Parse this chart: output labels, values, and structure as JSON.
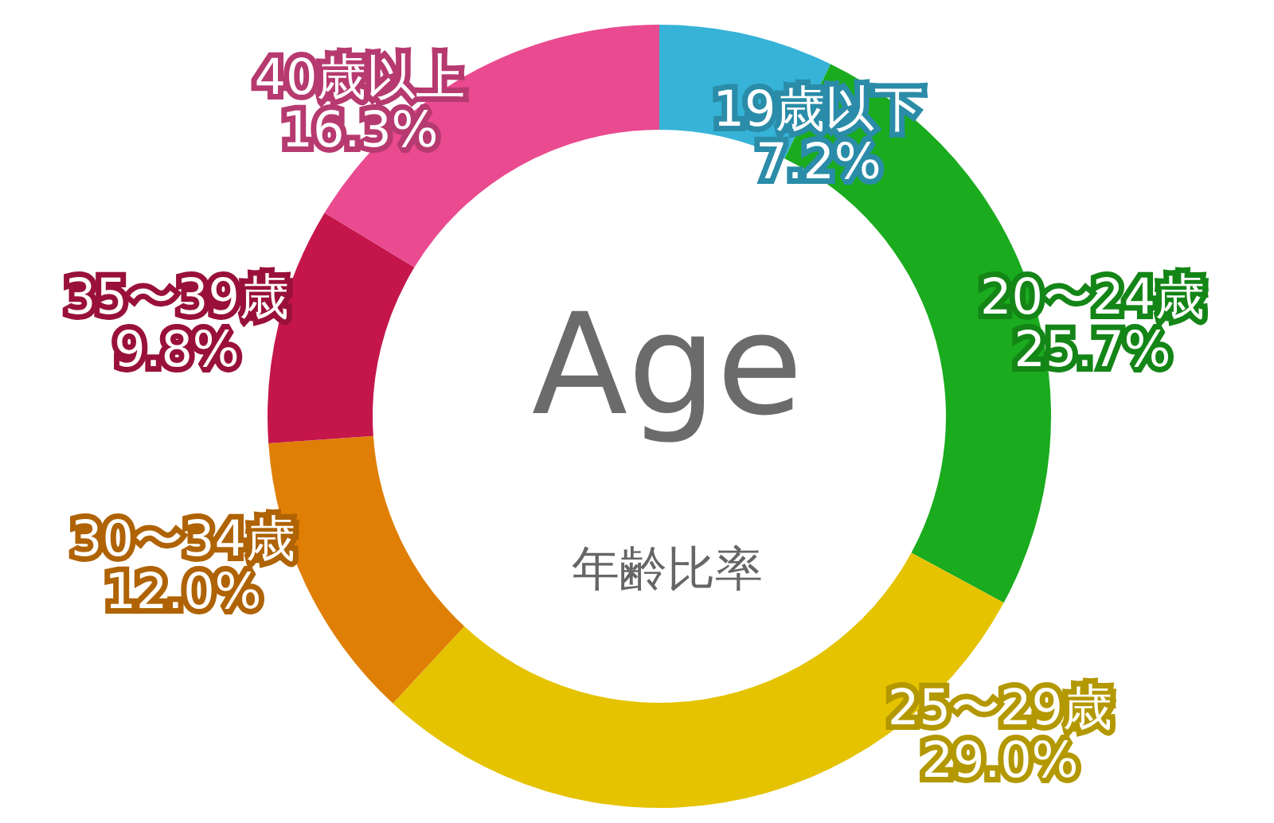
{
  "chart_data": {
    "type": "donut",
    "title": "Age",
    "subtitle": "年齢比率",
    "categories": [
      "19歳以下",
      "20〜24歳",
      "25〜29歳",
      "30〜34歳",
      "35〜39歳",
      "40歳以上"
    ],
    "values": [
      7.2,
      25.7,
      29.0,
      12.0,
      9.8,
      16.3
    ],
    "value_labels": [
      "7.2%",
      "25.7%",
      "29.0%",
      "12.0%",
      "9.8%",
      "16.3%"
    ],
    "colors": [
      "#36b3d7",
      "#1aab1e",
      "#e5c300",
      "#e07f05",
      "#c4164a",
      "#e94a90"
    ]
  }
}
